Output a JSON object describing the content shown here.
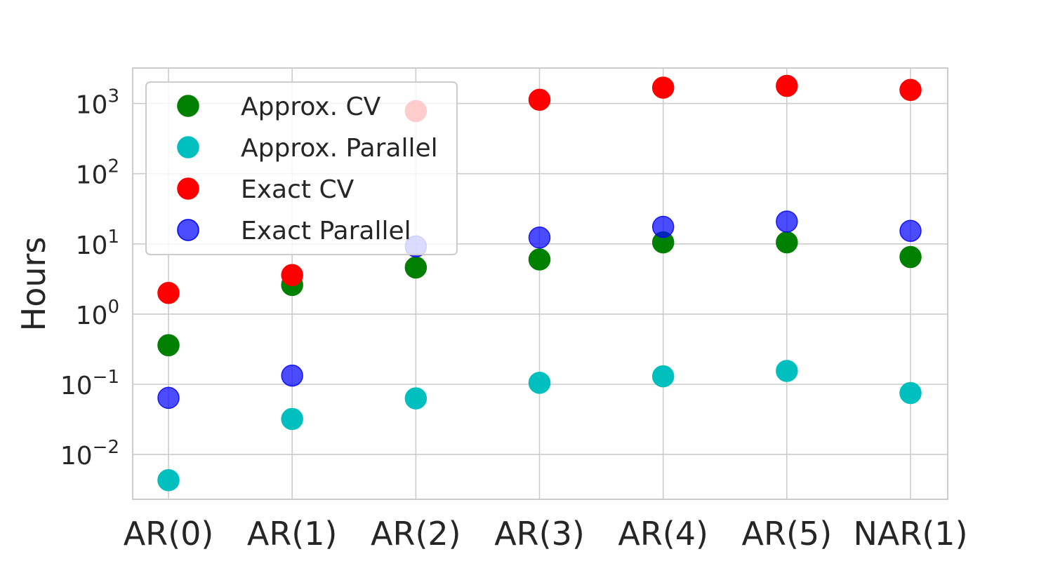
{
  "chart_data": {
    "type": "scatter",
    "title": "",
    "xlabel": "",
    "ylabel": "Hours",
    "y_scale": "log",
    "ylim": [
      0.0023,
      3200
    ],
    "y_ticks": [
      {
        "value": 0.01,
        "base": "10",
        "exp": "−2"
      },
      {
        "value": 0.1,
        "base": "10",
        "exp": "−1"
      },
      {
        "value": 1,
        "base": "10",
        "exp": "0"
      },
      {
        "value": 10,
        "base": "10",
        "exp": "1"
      },
      {
        "value": 100,
        "base": "10",
        "exp": "2"
      },
      {
        "value": 1000,
        "base": "10",
        "exp": "3"
      }
    ],
    "categories": [
      "AR(0)",
      "AR(1)",
      "AR(2)",
      "AR(3)",
      "AR(4)",
      "AR(5)",
      "NAR(1)"
    ],
    "grid": true,
    "legend_position": "upper-left",
    "series": [
      {
        "name": "Approx. CV",
        "color": "#008000",
        "opacity": 1.0,
        "values": [
          0.36,
          2.6,
          4.6,
          6.0,
          10.5,
          10.5,
          6.5
        ]
      },
      {
        "name": "Approx. Parallel",
        "color": "#00bfbf",
        "opacity": 1.0,
        "values": [
          0.0043,
          0.032,
          0.063,
          0.105,
          0.13,
          0.155,
          0.075
        ]
      },
      {
        "name": "Exact CV",
        "color": "#ff0000",
        "opacity": 1.0,
        "values": [
          2.0,
          3.6,
          780,
          1130,
          1680,
          1780,
          1560
        ]
      },
      {
        "name": "Exact Parallel",
        "color": "#0000ff",
        "opacity": 0.7,
        "values": [
          0.064,
          0.133,
          9.2,
          12.3,
          17.5,
          20.8,
          15.3
        ]
      }
    ]
  }
}
